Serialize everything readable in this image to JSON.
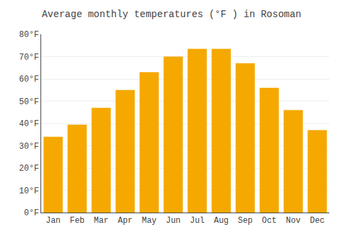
{
  "chart_data": {
    "type": "bar",
    "title": "Average monthly temperatures (°F ) in Rosoman",
    "categories": [
      "Jan",
      "Feb",
      "Mar",
      "Apr",
      "May",
      "Jun",
      "Jul",
      "Aug",
      "Sep",
      "Oct",
      "Nov",
      "Dec"
    ],
    "values": [
      34.0,
      39.5,
      47.0,
      55.0,
      63.0,
      70.0,
      73.5,
      73.5,
      67.0,
      56.0,
      46.0,
      37.0
    ],
    "color": "#F5A800",
    "ylim": [
      0,
      80
    ],
    "yticks": [
      {
        "value": 0,
        "label": "0°F"
      },
      {
        "value": 10,
        "label": "10°F"
      },
      {
        "value": 20,
        "label": "20°F"
      },
      {
        "value": 30,
        "label": "30°F"
      },
      {
        "value": 40,
        "label": "40°F"
      },
      {
        "value": 50,
        "label": "50°F"
      },
      {
        "value": 60,
        "label": "60°F"
      },
      {
        "value": 70,
        "label": "70°F"
      },
      {
        "value": 80,
        "label": "80°F"
      }
    ],
    "grid": true
  }
}
